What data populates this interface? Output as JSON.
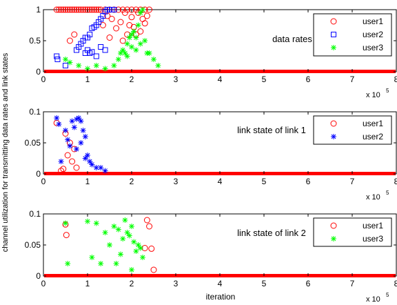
{
  "figure": {
    "ylabel": "channel utilization for transmitting data rates and link states",
    "xlabel": "iteration",
    "x_multiplier": "x 10",
    "x_multiplier_exp": "5"
  },
  "colors": {
    "user1": "#ff0000",
    "user2": "#0000ff",
    "user3": "#00ff00"
  },
  "chart_data": [
    {
      "type": "scatter",
      "annotation": "data rates",
      "xlim": [
        0,
        8
      ],
      "ylim": [
        0,
        1
      ],
      "x_ticks": [
        "0",
        "1",
        "2",
        "3",
        "4",
        "5",
        "6",
        "7",
        "8"
      ],
      "y_ticks": [
        "0",
        "0.5",
        "1"
      ],
      "legend": "top-right",
      "series": [
        {
          "name": "user1",
          "marker": "circle",
          "x": [
            0.3,
            0.35,
            0.4,
            0.45,
            0.5,
            0.55,
            0.6,
            0.65,
            0.7,
            0.75,
            0.8,
            0.85,
            0.9,
            0.95,
            1.0,
            1.05,
            1.1,
            1.15,
            1.2,
            1.25,
            1.3,
            1.4,
            1.5,
            1.6,
            1.7,
            1.8,
            1.9,
            2.0,
            2.1,
            2.2,
            2.3,
            2.4,
            0.6,
            0.7,
            1.35,
            1.45,
            1.55,
            1.65,
            1.75,
            1.85,
            1.9,
            2.0,
            2.05,
            2.15,
            2.2,
            2.3,
            2.35,
            1.5,
            1.8,
            2.1,
            2.25,
            1.95
          ],
          "y": [
            1,
            1,
            1,
            1,
            1,
            1,
            1,
            1,
            1,
            1,
            1,
            1,
            1,
            1,
            1,
            1,
            1,
            1,
            1,
            1,
            1,
            1,
            1,
            1,
            1,
            1,
            1,
            1,
            1,
            1,
            1,
            1,
            0.5,
            0.6,
            0.75,
            0.9,
            0.85,
            0.7,
            0.8,
            0.95,
            0.6,
            0.88,
            0.72,
            0.95,
            0.65,
            0.78,
            0.9,
            0.55,
            0.5,
            0.6,
            0.85,
            0.75
          ]
        },
        {
          "name": "user2",
          "marker": "square",
          "x": [
            0.3,
            0.32,
            0.5,
            0.75,
            0.8,
            0.85,
            0.9,
            0.95,
            1.0,
            1.05,
            1.1,
            1.15,
            1.2,
            1.25,
            1.3,
            1.35,
            1.4,
            1.45,
            1.5,
            1.55,
            1.6,
            0.95,
            1.0,
            1.05,
            1.1,
            1.2,
            1.3,
            1.4
          ],
          "y": [
            0.25,
            0.2,
            0.1,
            0.35,
            0.4,
            0.45,
            0.5,
            0.55,
            0.55,
            0.6,
            0.7,
            0.72,
            0.75,
            0.8,
            0.85,
            0.9,
            0.97,
            1,
            1,
            1,
            1,
            0.3,
            0.35,
            0.3,
            0.32,
            0.25,
            0.4,
            0.35
          ]
        },
        {
          "name": "user3",
          "marker": "star",
          "x": [
            0.5,
            0.6,
            0.8,
            1.0,
            1.2,
            1.4,
            1.6,
            1.7,
            1.8,
            1.85,
            1.9,
            1.95,
            2.0,
            2.05,
            2.1,
            2.15,
            2.2,
            2.25,
            2.3,
            2.35,
            2.4,
            2.5,
            2.6,
            1.75,
            1.9,
            2.0,
            2.1,
            2.2
          ],
          "y": [
            0.2,
            0.15,
            0.1,
            0.05,
            0.1,
            0.05,
            0.1,
            0.2,
            0.35,
            0.3,
            0.45,
            0.55,
            0.6,
            0.65,
            0.55,
            0.75,
            0.95,
            1,
            0.5,
            0.3,
            0.3,
            0.2,
            0.1,
            0.3,
            0.25,
            0.4,
            0.35,
            0.45
          ]
        }
      ]
    },
    {
      "type": "scatter",
      "annotation": "link state of link 1",
      "xlim": [
        0,
        8
      ],
      "ylim": [
        0,
        0.1
      ],
      "x_ticks": [
        "0",
        "1",
        "2",
        "3",
        "4",
        "5",
        "6",
        "7",
        "8"
      ],
      "y_ticks": [
        "0",
        "0.05",
        "0.1"
      ],
      "legend": "top-right",
      "series": [
        {
          "name": "user1",
          "marker": "circle",
          "x": [
            0.3,
            0.5,
            0.55,
            0.6,
            0.65,
            0.7,
            0.75,
            0.4,
            0.45
          ],
          "y": [
            0.082,
            0.065,
            0.03,
            0.05,
            0.02,
            0.04,
            0.01,
            0.005,
            0.008
          ]
        },
        {
          "name": "user2",
          "marker": "star",
          "x": [
            0.3,
            0.35,
            0.4,
            0.5,
            0.55,
            0.6,
            0.65,
            0.7,
            0.75,
            0.8,
            0.85,
            0.9,
            0.95,
            1.0,
            1.05,
            1.1,
            1.2,
            1.3,
            1.4,
            0.75,
            0.85,
            0.95
          ],
          "y": [
            0.09,
            0.08,
            0.02,
            0.07,
            0.055,
            0.045,
            0.085,
            0.075,
            0.088,
            0.09,
            0.085,
            0.07,
            0.06,
            0.03,
            0.02,
            0.015,
            0.01,
            0.01,
            0.005,
            0.04,
            0.05,
            0.025
          ]
        }
      ]
    },
    {
      "type": "scatter",
      "annotation": "link state of link 2",
      "xlim": [
        0,
        8
      ],
      "ylim": [
        0,
        0.1
      ],
      "x_ticks": [
        "0",
        "1",
        "2",
        "3",
        "4",
        "5",
        "6",
        "7",
        "8"
      ],
      "y_ticks": [
        "0",
        "0.05",
        "0.1"
      ],
      "legend": "top-right",
      "series": [
        {
          "name": "user1",
          "marker": "circle",
          "x": [
            0.5,
            0.52,
            2.35,
            2.4,
            2.3,
            2.45,
            2.5
          ],
          "y": [
            0.083,
            0.066,
            0.09,
            0.08,
            0.045,
            0.044,
            0.01
          ]
        },
        {
          "name": "user3",
          "marker": "star",
          "x": [
            0.5,
            0.55,
            1.0,
            1.2,
            1.4,
            1.5,
            1.6,
            1.7,
            1.8,
            1.85,
            1.9,
            1.95,
            2.0,
            2.05,
            2.1,
            2.15,
            2.2,
            2.25,
            1.3,
            1.1,
            1.75,
            1.65,
            2.0
          ],
          "y": [
            0.085,
            0.02,
            0.088,
            0.085,
            0.07,
            0.05,
            0.08,
            0.075,
            0.06,
            0.09,
            0.07,
            0.065,
            0.08,
            0.055,
            0.04,
            0.05,
            0.045,
            0.03,
            0.02,
            0.03,
            0.035,
            0.02,
            0.01
          ]
        }
      ]
    }
  ]
}
